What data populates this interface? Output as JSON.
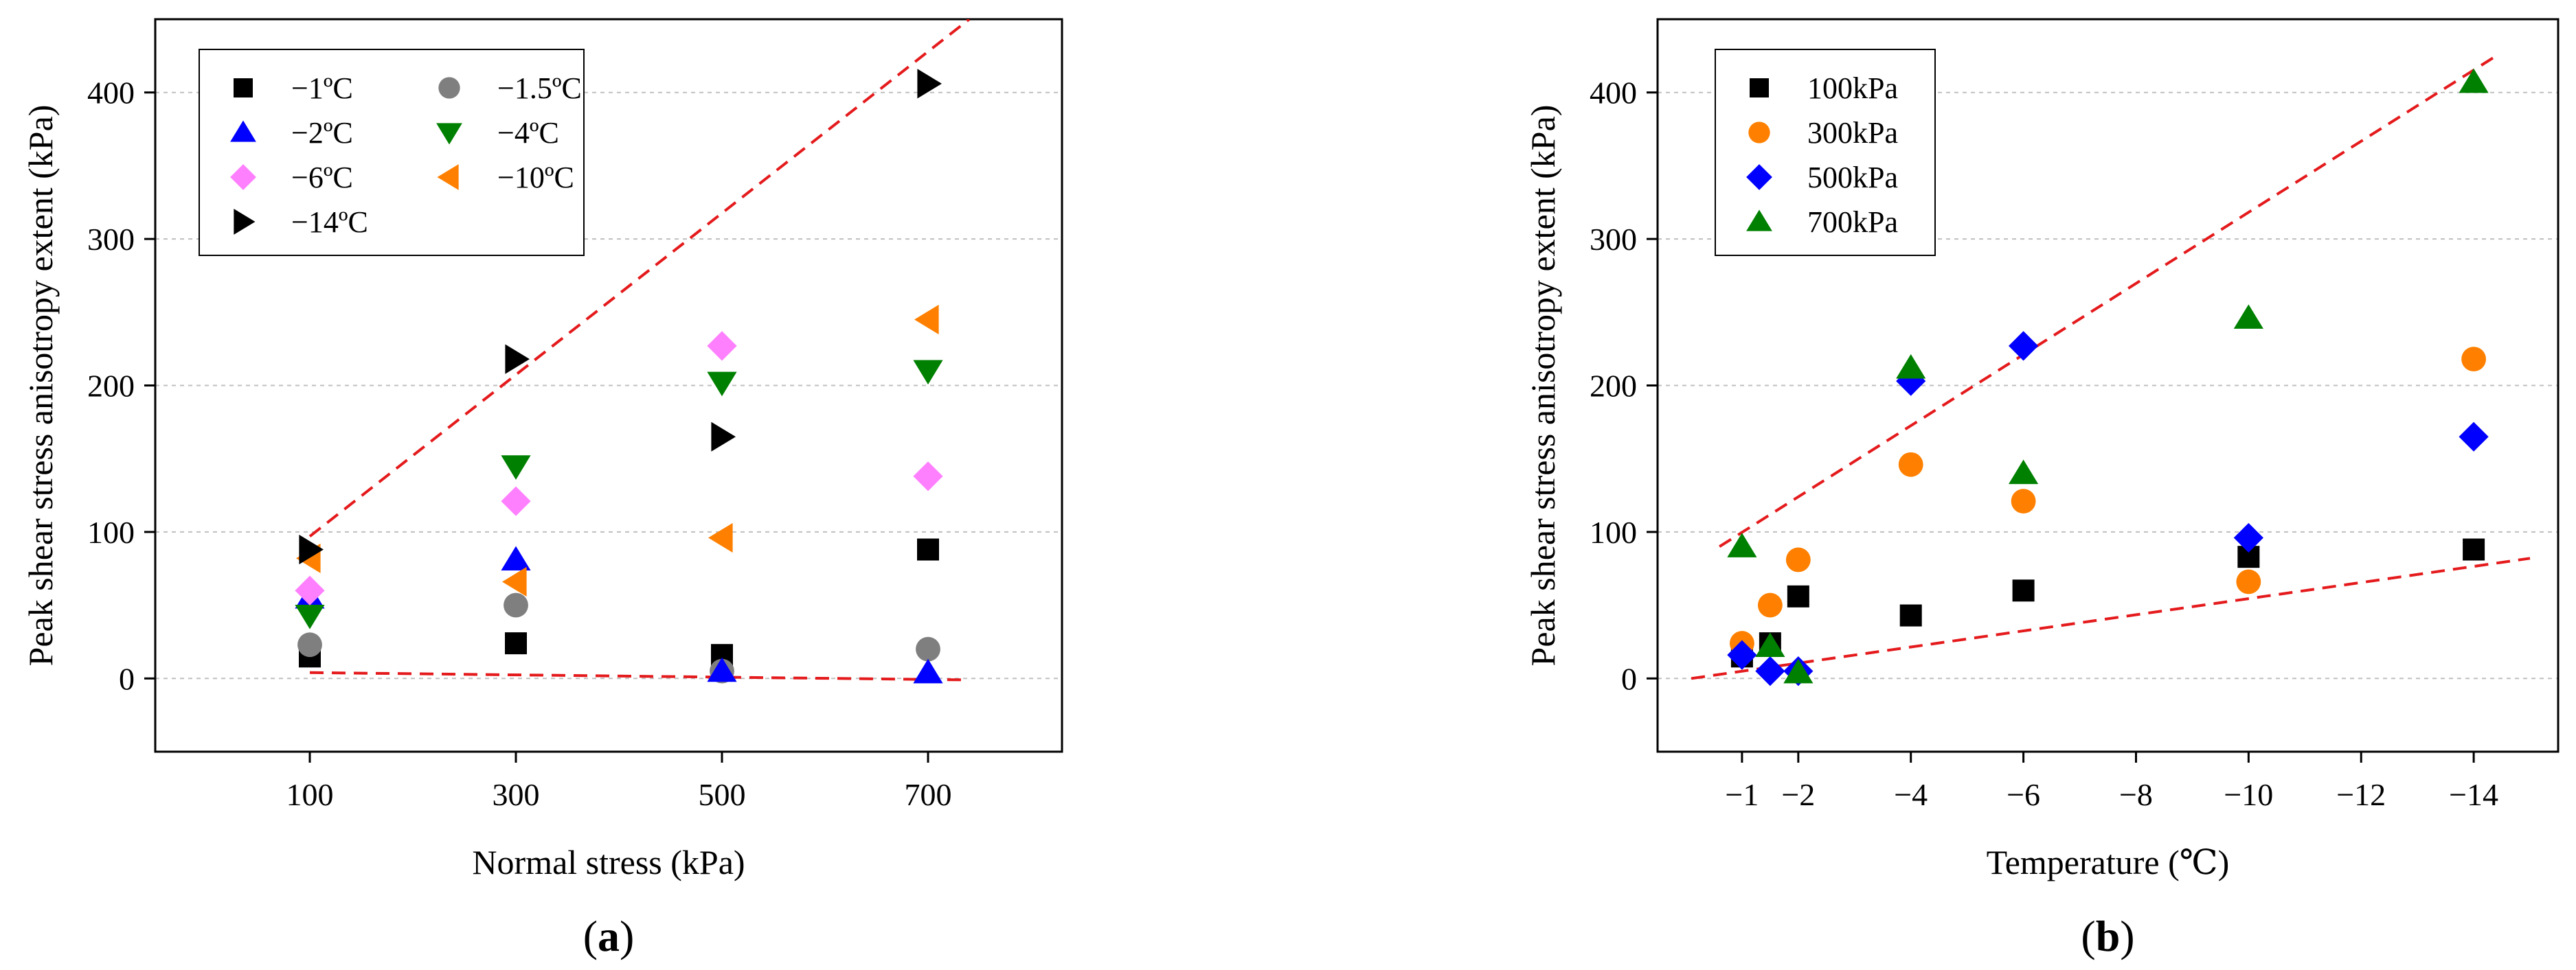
{
  "colors": {
    "black": "#000000",
    "gray": "#7f7f7f",
    "blue": "#0000ff",
    "green": "#008000",
    "pink": "#ff80ff",
    "orange": "#ff8000",
    "fit": "#e41a1c",
    "grid": "#bfbfbf"
  },
  "chart_data": [
    {
      "type": "scatter",
      "panel_label": "a",
      "xlabel": "Normal stress (kPa)",
      "ylabel": "Peak shear stress anisotropy extent (kPa)",
      "xlim": [
        -50,
        830
      ],
      "ylim": [
        -50,
        450
      ],
      "xticks": [
        100,
        300,
        500,
        700
      ],
      "xtick_labels": [
        "100",
        "300",
        "500",
        "700"
      ],
      "yticks": [
        0,
        100,
        200,
        300,
        400
      ],
      "ytick_labels": [
        "0",
        "100",
        "200",
        "300",
        "400"
      ],
      "grid": "horizontal dashed",
      "legend_position": "top-left",
      "series": [
        {
          "name": "−1ºC",
          "marker": "square",
          "color": "#000000",
          "x": [
            100,
            300,
            500,
            700
          ],
          "y": [
            15,
            24,
            16,
            88
          ]
        },
        {
          "name": "−1.5ºC",
          "marker": "circle",
          "color": "#7f7f7f",
          "x": [
            100,
            300,
            500,
            700
          ],
          "y": [
            23,
            50,
            5,
            20
          ]
        },
        {
          "name": "−2ºC",
          "marker": "triangle-up",
          "color": "#0000ff",
          "x": [
            100,
            300,
            500,
            700
          ],
          "y": [
            55,
            81,
            5,
            4
          ]
        },
        {
          "name": "−4ºC",
          "marker": "triangle-down",
          "color": "#008000",
          "x": [
            100,
            300,
            500,
            700
          ],
          "y": [
            43,
            145,
            202,
            210
          ]
        },
        {
          "name": "−6ºC",
          "marker": "diamond",
          "color": "#ff80ff",
          "x": [
            100,
            300,
            500,
            700
          ],
          "y": [
            60,
            121,
            227,
            138
          ]
        },
        {
          "name": "−10ºC",
          "marker": "triangle-left",
          "color": "#ff8000",
          "x": [
            100,
            300,
            500,
            700
          ],
          "y": [
            82,
            66,
            96,
            245
          ]
        },
        {
          "name": "−14ºC",
          "marker": "triangle-right",
          "color": "#000000",
          "x": [
            100,
            300,
            500,
            700
          ],
          "y": [
            88,
            218,
            165,
            406
          ]
        }
      ],
      "fit_lines": [
        {
          "x": [
            100,
            740
          ],
          "y": [
            97,
            450
          ]
        },
        {
          "x": [
            100,
            740
          ],
          "y": [
            4,
            -1
          ]
        }
      ]
    },
    {
      "type": "scatter",
      "panel_label": "b",
      "xlabel": "Temperature (℃)",
      "ylabel": "Peak shear stress anisotropy extent (kPa)",
      "xlim": [
        0.5,
        -15.5
      ],
      "ylim": [
        -50,
        450
      ],
      "xticks": [
        -1,
        -2,
        -4,
        -6,
        -8,
        -10,
        -12,
        -14
      ],
      "xtick_labels": [
        "−1",
        "−2",
        "−4",
        "−6",
        "−8",
        "−10",
        "−12",
        "−14"
      ],
      "yticks": [
        0,
        100,
        200,
        300,
        400
      ],
      "ytick_labels": [
        "0",
        "100",
        "200",
        "300",
        "400"
      ],
      "grid": "horizontal dashed",
      "legend_position": "top-left",
      "series": [
        {
          "name": "100kPa",
          "marker": "square",
          "color": "#000000",
          "x": [
            -1,
            -1.5,
            -2,
            -4,
            -6,
            -10,
            -14
          ],
          "y": [
            15,
            24,
            56,
            43,
            60,
            83,
            88
          ]
        },
        {
          "name": "300kPa",
          "marker": "circle",
          "color": "#ff8000",
          "x": [
            -1,
            -1.5,
            -2,
            -4,
            -6,
            -10,
            -14
          ],
          "y": [
            24,
            50,
            81,
            146,
            121,
            66,
            218
          ]
        },
        {
          "name": "500kPa",
          "marker": "diamond",
          "color": "#0000ff",
          "x": [
            -1,
            -1.5,
            -2,
            -4,
            -6,
            -10,
            -14
          ],
          "y": [
            16,
            5,
            5,
            203,
            227,
            96,
            165
          ]
        },
        {
          "name": "700kPa",
          "marker": "triangle-up",
          "color": "#008000",
          "x": [
            -1,
            -1.5,
            -2,
            -4,
            -6,
            -10,
            -14
          ],
          "y": [
            90,
            22,
            4,
            212,
            140,
            246,
            407
          ]
        }
      ],
      "fit_lines": [
        {
          "x": [
            -0.6,
            -14.4
          ],
          "y": [
            90,
            425
          ]
        },
        {
          "x": [
            -0.1,
            -15.0
          ],
          "y": [
            0,
            82
          ]
        }
      ]
    }
  ]
}
